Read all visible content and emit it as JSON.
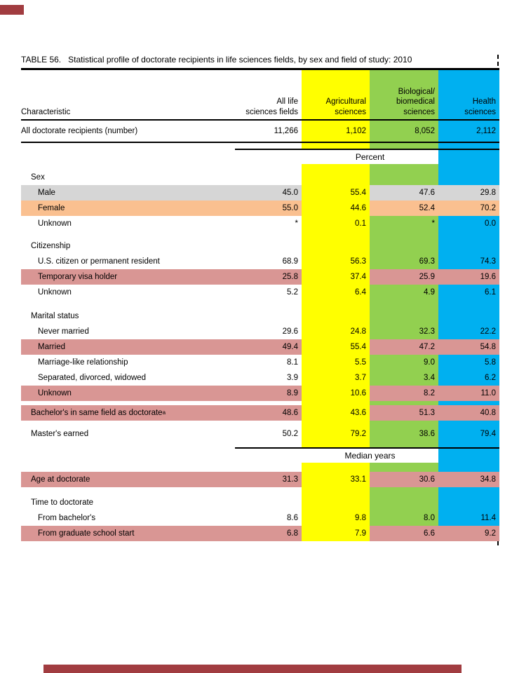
{
  "title": {
    "prefix": "TABLE 56.",
    "text": "Statistical profile of doctorate recipients in life sciences fields, by sex and field of study: 2010"
  },
  "columns": {
    "characteristic_label": "Characteristic",
    "headers": [
      {
        "label": "All life\nsciences fields",
        "colkey": "none"
      },
      {
        "label": "Agricultural\nsciences",
        "colkey": "agricultural"
      },
      {
        "label": "Biological/\nbiomedical\nsciences",
        "colkey": "biological"
      },
      {
        "label": "Health\nsciences",
        "colkey": "health"
      }
    ]
  },
  "colors": {
    "columns": {
      "agricultural": "#FFFF00",
      "biological": "#92D050",
      "health": "#00B0F0"
    },
    "highlights": {
      "gray": "#D6D6D6",
      "orange": "#FAC090",
      "pink": "#D99694"
    },
    "decor": "#A13C40"
  },
  "rows": [
    {
      "type": "data",
      "label": "All doctorate recipients (number)",
      "indent": 0,
      "values": [
        "11,266",
        "1,102",
        "8,052",
        "2,112"
      ],
      "h": 32,
      "rule_below": true
    },
    {
      "type": "spacer",
      "h": 8
    },
    {
      "type": "band",
      "label": "Percent"
    },
    {
      "type": "spacer",
      "h": 8
    },
    {
      "type": "group",
      "label": "Sex",
      "indent": 1
    },
    {
      "type": "data",
      "label": "Male",
      "indent": 2,
      "highlight": "gray",
      "values": [
        "45.0",
        "55.4",
        "47.6",
        "29.8"
      ]
    },
    {
      "type": "data",
      "label": "Female",
      "indent": 2,
      "highlight": "orange",
      "values": [
        "55.0",
        "44.6",
        "52.4",
        "70.2"
      ]
    },
    {
      "type": "data",
      "label": "Unknown",
      "indent": 2,
      "values": [
        "*",
        "0.1",
        "*",
        "0.0"
      ]
    },
    {
      "type": "spacer",
      "h": 10
    },
    {
      "type": "group",
      "label": "Citizenship",
      "indent": 1
    },
    {
      "type": "data",
      "label": "U.S. citizen or permanent resident",
      "indent": 2,
      "values": [
        "68.9",
        "56.3",
        "69.3",
        "74.3"
      ]
    },
    {
      "type": "data",
      "label": "Temporary visa holder",
      "indent": 2,
      "highlight": "pink",
      "values": [
        "25.8",
        "37.4",
        "25.9",
        "19.6"
      ]
    },
    {
      "type": "data",
      "label": "Unknown",
      "indent": 2,
      "values": [
        "5.2",
        "6.4",
        "4.9",
        "6.1"
      ]
    },
    {
      "type": "spacer",
      "h": 12
    },
    {
      "type": "group",
      "label": "Marital status",
      "indent": 1
    },
    {
      "type": "data",
      "label": "Never married",
      "indent": 2,
      "values": [
        "29.6",
        "24.8",
        "32.3",
        "22.2"
      ]
    },
    {
      "type": "data",
      "label": "Married",
      "indent": 2,
      "highlight": "pink",
      "values": [
        "49.4",
        "55.4",
        "47.2",
        "54.8"
      ]
    },
    {
      "type": "data",
      "label": "Marriage-like relationship",
      "indent": 2,
      "values": [
        "8.1",
        "5.5",
        "9.0",
        "5.8"
      ]
    },
    {
      "type": "data",
      "label": "Separated, divorced, widowed",
      "indent": 2,
      "values": [
        "3.9",
        "3.7",
        "3.4",
        "6.2"
      ]
    },
    {
      "type": "data",
      "label": "Unknown",
      "indent": 2,
      "highlight": "pink",
      "values": [
        "8.9",
        "10.6",
        "8.2",
        "11.0"
      ]
    },
    {
      "type": "spacer",
      "h": 6
    },
    {
      "type": "data",
      "label": "Bachelor's in same field as doctorate",
      "sup": "a",
      "indent": 1,
      "highlight": "pink",
      "values": [
        "48.6",
        "43.6",
        "51.3",
        "40.8"
      ]
    },
    {
      "type": "spacer",
      "h": 8
    },
    {
      "type": "data",
      "label": "Master's earned",
      "indent": 1,
      "values": [
        "50.2",
        "79.2",
        "38.6",
        "79.4"
      ]
    },
    {
      "type": "spacer",
      "h": 8
    },
    {
      "type": "band",
      "label": "Median years"
    },
    {
      "type": "spacer",
      "h": 13
    },
    {
      "type": "data",
      "label": "Age at doctorate",
      "indent": 1,
      "highlight": "pink",
      "values": [
        "31.3",
        "33.1",
        "30.6",
        "34.8"
      ]
    },
    {
      "type": "spacer",
      "h": 11
    },
    {
      "type": "group",
      "label": "Time to doctorate",
      "indent": 1
    },
    {
      "type": "data",
      "label": "From bachelor's",
      "indent": 2,
      "values": [
        "8.6",
        "9.8",
        "8.0",
        "11.4"
      ]
    },
    {
      "type": "data",
      "label": "From graduate school start",
      "indent": 2,
      "highlight": "pink",
      "values": [
        "6.8",
        "7.9",
        "6.6",
        "9.2"
      ]
    }
  ]
}
